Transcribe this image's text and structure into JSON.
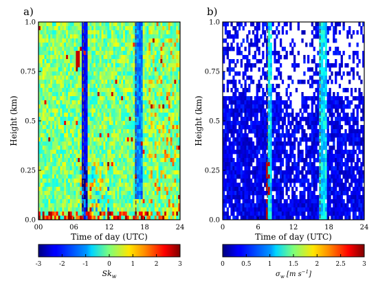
{
  "chart_data": [
    {
      "type": "heatmap",
      "panel_label": "a)",
      "xlabel": "Time of day (UTC)",
      "ylabel": "Height (km)",
      "xlim": [
        0,
        24
      ],
      "ylim": [
        0,
        1.0
      ],
      "x_ticks": [
        "00",
        "06",
        "12",
        "18",
        "24"
      ],
      "x_tick_values": [
        0,
        6,
        12,
        18,
        24
      ],
      "y_ticks": [
        "0.0",
        "0.25",
        "0.5",
        "0.75",
        "1.0"
      ],
      "y_tick_values": [
        0,
        0.25,
        0.5,
        0.75,
        1.0
      ],
      "dashed_lines_x": [
        7.6,
        16.5
      ],
      "colorbar": {
        "label": "Sk_w",
        "colormap": "jet",
        "range": [
          -3,
          3
        ],
        "ticks": [
          "-3",
          "-2",
          "-1",
          "0",
          "1",
          "2",
          "3"
        ],
        "tick_values": [
          -3,
          -2,
          -1,
          0,
          1,
          2,
          3
        ]
      },
      "description_of_field": "Skewness mostly between -0.5 and 0.5 (cyan/green); dark blue columns near 08 and 17 UTC; red/orange patches near surface and near 0.8 km around 06 UTC."
    },
    {
      "type": "heatmap",
      "panel_label": "b)",
      "xlabel": "Time of day (UTC)",
      "ylabel": "Height (km)",
      "xlim": [
        0,
        24
      ],
      "ylim": [
        0,
        1.0
      ],
      "x_ticks": [
        "0",
        "6",
        "12",
        "18",
        "24"
      ],
      "x_tick_values": [
        0,
        6,
        12,
        18,
        24
      ],
      "y_ticks": [
        "0.0",
        "0.25",
        "0.5",
        "0.75",
        "1.0"
      ],
      "y_tick_values": [
        0,
        0.25,
        0.5,
        0.75,
        1.0
      ],
      "dashed_lines_x": [
        7.6,
        16.5
      ],
      "colorbar": {
        "label": "σ_w [m s^-1]",
        "colormap": "jet",
        "range": [
          0,
          3
        ],
        "ticks": [
          "0",
          "0.5",
          "1",
          "1.5",
          "2",
          "2.5",
          "3"
        ],
        "tick_values": [
          0,
          0.5,
          1,
          1.5,
          2,
          2.5,
          3
        ]
      },
      "description_of_field": "Vertical velocity std mostly 0-0.5 m/s (blue) with many missing (white) gaps, especially above ~0.6 km and at midday; lighter blue/cyan columns near 8 and 17 UTC."
    }
  ]
}
